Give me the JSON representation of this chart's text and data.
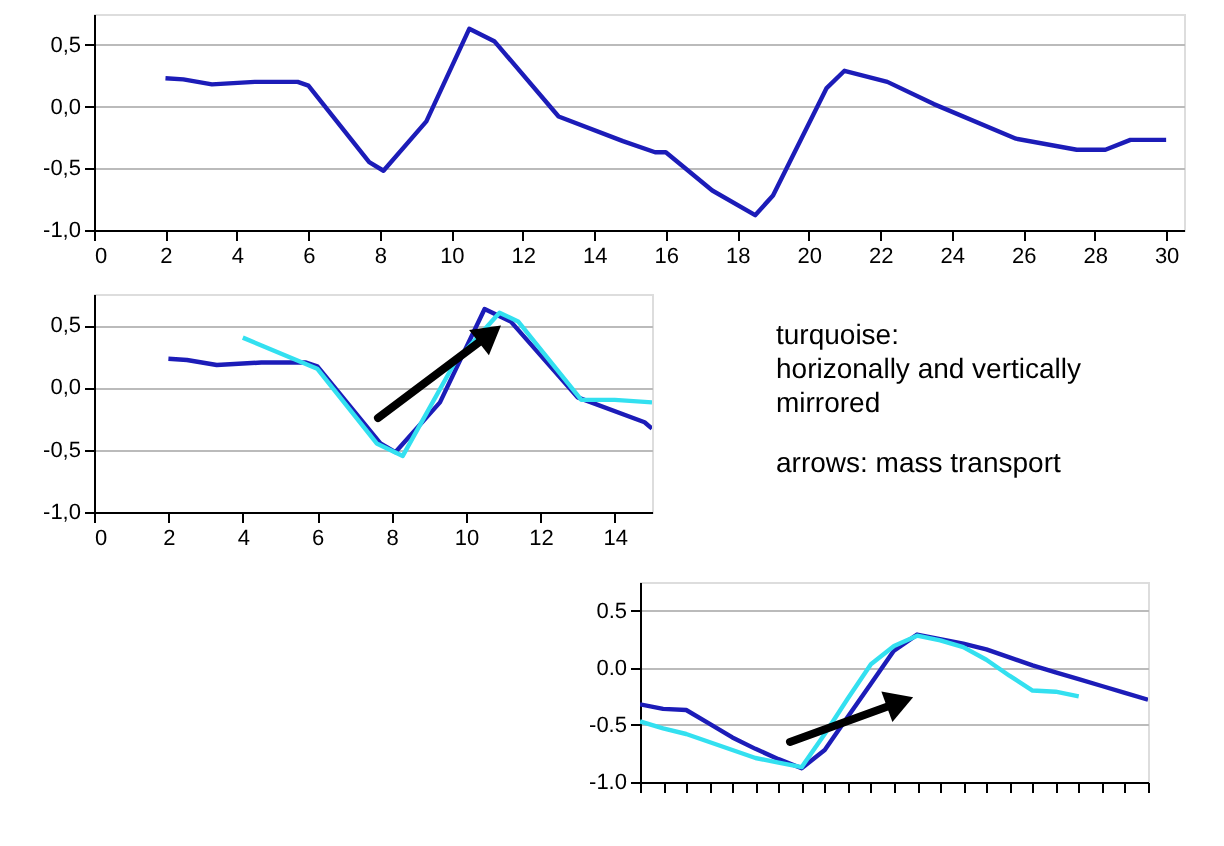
{
  "chart_data": [
    {
      "type": "line",
      "xlim": [
        0,
        30.5
      ],
      "ylim": [
        -1,
        0.75
      ],
      "xticks": [
        0,
        2,
        4,
        6,
        8,
        10,
        12,
        14,
        16,
        18,
        20,
        22,
        24,
        26,
        28,
        30
      ],
      "yticks": [
        {
          "value": -1,
          "label": "-1,0"
        },
        {
          "value": -0.5,
          "label": "-0,5"
        },
        {
          "value": 0,
          "label": "0,0"
        },
        {
          "value": 0.5,
          "label": "0,5"
        }
      ],
      "grid": "y",
      "series": [
        {
          "color": "#1c1cb8",
          "x": [
            2,
            2.5,
            3.3,
            4.5,
            5.7,
            6,
            7.7,
            8.1,
            9.3,
            10.5,
            11.2,
            13,
            14.8,
            15.7,
            16,
            17.3,
            18.5,
            19,
            20.5,
            21,
            22.2,
            23.5,
            25.8,
            27.5,
            28.3,
            29,
            30
          ],
          "values": [
            0.23,
            0.22,
            0.18,
            0.2,
            0.2,
            0.17,
            -0.45,
            -0.52,
            -0.12,
            0.63,
            0.53,
            -0.08,
            -0.28,
            -0.37,
            -0.37,
            -0.68,
            -0.88,
            -0.72,
            0.15,
            0.29,
            0.2,
            0.02,
            -0.26,
            -0.35,
            -0.35,
            -0.27,
            -0.27
          ]
        }
      ]
    },
    {
      "type": "line",
      "xlim": [
        0,
        15
      ],
      "ylim": [
        -1,
        0.75
      ],
      "xticks": [
        0,
        2,
        4,
        6,
        8,
        10,
        12,
        14
      ],
      "yticks": [
        {
          "value": -1,
          "label": "-1,0"
        },
        {
          "value": -0.5,
          "label": "-0,5"
        },
        {
          "value": 0,
          "label": "0,0"
        },
        {
          "value": 0.5,
          "label": "0,5"
        }
      ],
      "grid": "y",
      "annotations": [
        "turquoise:\nhorizonally and vertically\nmirrored",
        "arrows: mass transport"
      ],
      "series": [
        {
          "color": "#1c1cb8",
          "x": [
            2,
            2.5,
            3.3,
            4.5,
            5.7,
            6,
            7.7,
            8.1,
            9.3,
            10.5,
            11.2,
            13,
            14.8,
            15
          ],
          "values": [
            0.23,
            0.22,
            0.18,
            0.2,
            0.2,
            0.17,
            -0.45,
            -0.52,
            -0.12,
            0.63,
            0.53,
            -0.08,
            -0.28,
            -0.33
          ]
        },
        {
          "color": "#33e0f0",
          "x": [
            4,
            6,
            7.6,
            8.3,
            9.7,
            10.9,
            11.4,
            13.1,
            14,
            15
          ],
          "values": [
            0.4,
            0.15,
            -0.45,
            -0.55,
            0.2,
            0.6,
            0.53,
            -0.1,
            -0.1,
            -0.12
          ]
        }
      ]
    },
    {
      "type": "line",
      "categories": [
        null,
        null,
        null,
        null,
        null,
        null,
        null,
        null,
        null,
        null,
        null,
        null,
        null,
        null,
        null,
        null,
        null,
        null,
        null,
        null,
        null,
        null,
        null
      ],
      "ylim": [
        -1,
        0.75
      ],
      "yticks": [
        {
          "value": -1,
          "label": "-1.0"
        },
        {
          "value": -0.5,
          "label": "-0.5"
        },
        {
          "value": 0,
          "label": "0.0"
        },
        {
          "value": 0.5,
          "label": "0.5"
        }
      ],
      "grid": "y",
      "tick_labels": "y",
      "series": [
        {
          "color": "#1c1cb8",
          "values": [
            -0.32,
            -0.36,
            -0.37,
            -0.49,
            -0.61,
            -0.71,
            -0.8,
            -0.88,
            -0.72,
            -0.43,
            -0.14,
            0.15,
            0.29,
            0.25,
            0.21,
            0.16,
            0.09,
            0.02,
            -0.04,
            -0.1,
            -0.16,
            -0.22,
            -0.28
          ]
        },
        {
          "color": "#33e0f0",
          "values": [
            -0.47,
            -0.53,
            -0.58,
            -0.65,
            -0.72,
            -0.79,
            -0.83,
            -0.87,
            -0.58,
            -0.27,
            0.03,
            0.19,
            0.28,
            0.24,
            0.18,
            0.07,
            -0.07,
            -0.2,
            -0.21,
            -0.25,
            null,
            null,
            null
          ]
        }
      ]
    }
  ]
}
